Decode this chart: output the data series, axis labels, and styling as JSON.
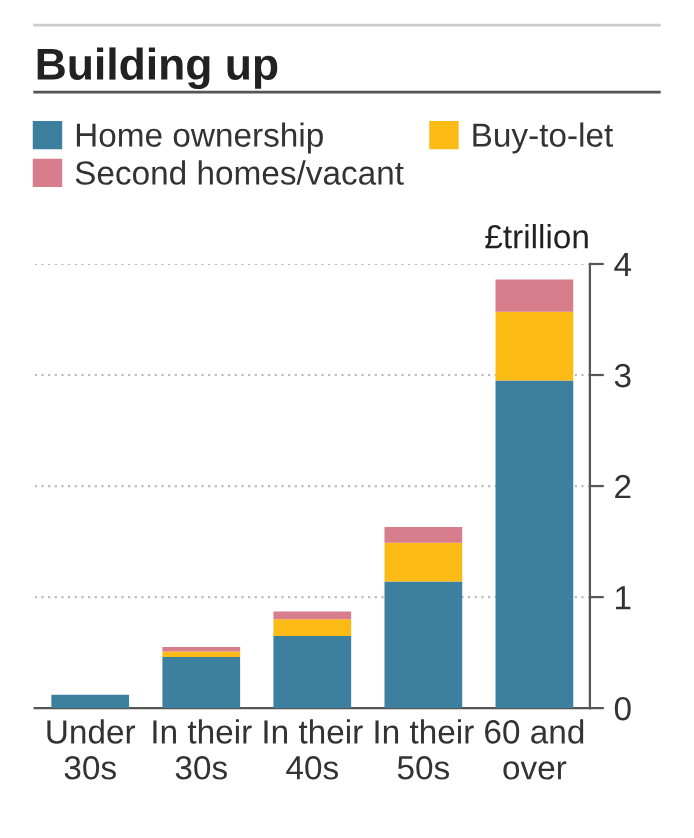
{
  "chart_data": {
    "type": "bar",
    "title": "Building up",
    "ylabel": "£trillion",
    "categories": [
      "Under\n30s",
      "In their\n30s",
      "In their\n40s",
      "In their\n50s",
      "60 and\nover"
    ],
    "stacked": true,
    "series": [
      {
        "name": "Home ownership",
        "color": "#3d7f9e",
        "values": [
          0.12,
          0.46,
          0.65,
          1.14,
          2.95
        ]
      },
      {
        "name": "Buy-to-let",
        "color": "#fbbb14",
        "values": [
          0,
          0.05,
          0.15,
          0.35,
          0.62
        ]
      },
      {
        "name": "Second homes/vacant",
        "color": "#d87d8b",
        "values": [
          0,
          0.04,
          0.07,
          0.14,
          0.29
        ]
      }
    ],
    "ylim": [
      0,
      4
    ],
    "yticks": [
      0,
      1,
      2,
      3,
      4
    ],
    "grid": "y",
    "legend": "top"
  }
}
